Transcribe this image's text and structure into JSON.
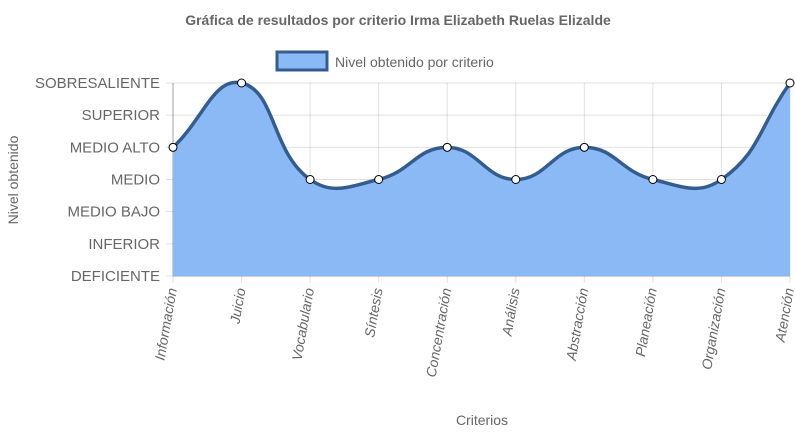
{
  "chart_data": {
    "type": "area",
    "title": "Gráfica de resultados por criterio Irma Elizabeth Ruelas Elizalde",
    "xlabel": "Criterios",
    "ylabel": "Nivel obtenido",
    "categories": [
      "Información",
      "Juicio",
      "Vocabulario",
      "Síntesis",
      "Concentración",
      "Análisis",
      "Abstracción",
      "Planeación",
      "Organización",
      "Atención"
    ],
    "y_levels": [
      "DEFICIENTE",
      "INFERIOR",
      "MEDIO BAJO",
      "MEDIO",
      "MEDIO ALTO",
      "SUPERIOR",
      "SOBRESALIENTE"
    ],
    "series": [
      {
        "name": "Nivel obtenido por criterio",
        "values": [
          "MEDIO ALTO",
          "SOBRESALIENTE",
          "MEDIO",
          "MEDIO",
          "MEDIO ALTO",
          "MEDIO",
          "MEDIO ALTO",
          "MEDIO",
          "MEDIO",
          "SOBRESALIENTE"
        ]
      }
    ],
    "legend_position": "top",
    "grid": true,
    "curve": "smooth",
    "colors": {
      "fill": "#8ab9f5",
      "line": "#345d8f",
      "point_fill": "#ffffff",
      "point_stroke": "#000000"
    }
  }
}
